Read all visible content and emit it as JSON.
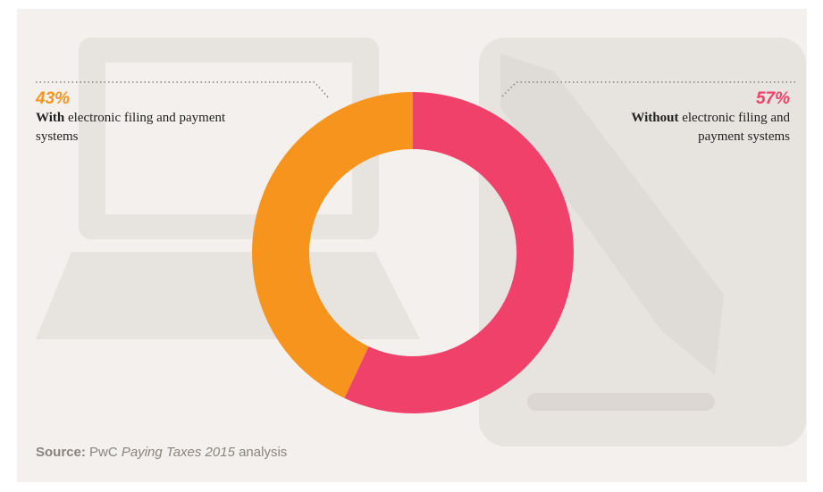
{
  "chart_data": {
    "type": "donut",
    "categories_bold": [
      "Without",
      "With"
    ],
    "categories_rest": [
      "electronic filing and payment systems",
      "electronic filing and payment systems"
    ],
    "values": [
      57,
      43
    ],
    "value_labels": [
      "57%",
      "43%"
    ],
    "colors": [
      "#f0416a",
      "#f7941e"
    ],
    "source": {
      "label": "Source:",
      "org": "PwC",
      "publication": "Paying Taxes 2015",
      "suffix": "analysis"
    }
  }
}
